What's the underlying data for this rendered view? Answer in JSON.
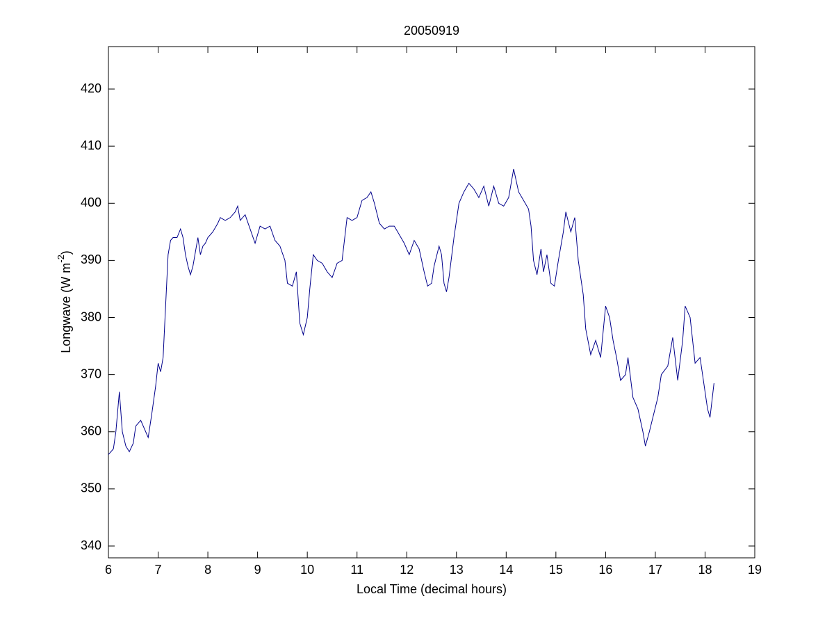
{
  "chart_data": {
    "type": "line",
    "title": "20050919",
    "xlabel": "Local Time (decimal hours)",
    "ylabel": {
      "text": "Longwave (W m",
      "superscript": "-2",
      "suffix": ")"
    },
    "color": "#00008b",
    "x": [
      6.0,
      6.1,
      6.15,
      6.22,
      6.28,
      6.35,
      6.42,
      6.5,
      6.55,
      6.65,
      6.75,
      6.8,
      6.87,
      6.95,
      7.0,
      7.05,
      7.1,
      7.15,
      7.2,
      7.25,
      7.3,
      7.38,
      7.45,
      7.5,
      7.55,
      7.6,
      7.65,
      7.7,
      7.8,
      7.85,
      7.9,
      7.95,
      8.0,
      8.1,
      8.2,
      8.25,
      8.35,
      8.45,
      8.55,
      8.6,
      8.65,
      8.75,
      8.85,
      8.95,
      9.05,
      9.15,
      9.25,
      9.35,
      9.45,
      9.55,
      9.6,
      9.7,
      9.78,
      9.85,
      9.92,
      10.0,
      10.05,
      10.12,
      10.2,
      10.3,
      10.4,
      10.5,
      10.6,
      10.7,
      10.8,
      10.9,
      11.0,
      11.1,
      11.2,
      11.28,
      11.35,
      11.45,
      11.55,
      11.65,
      11.75,
      11.85,
      11.95,
      12.05,
      12.15,
      12.25,
      12.35,
      12.42,
      12.5,
      12.55,
      12.65,
      12.7,
      12.75,
      12.8,
      12.85,
      12.95,
      13.05,
      13.15,
      13.25,
      13.35,
      13.45,
      13.55,
      13.65,
      13.75,
      13.85,
      13.95,
      14.05,
      14.15,
      14.25,
      14.35,
      14.45,
      14.5,
      14.55,
      14.62,
      14.7,
      14.75,
      14.82,
      14.9,
      14.97,
      15.05,
      15.15,
      15.2,
      15.3,
      15.38,
      15.45,
      15.55,
      15.6,
      15.7,
      15.8,
      15.9,
      16.0,
      16.08,
      16.15,
      16.22,
      16.3,
      16.4,
      16.45,
      16.55,
      16.65,
      16.75,
      16.8,
      16.88,
      16.95,
      17.05,
      17.12,
      17.25,
      17.35,
      17.45,
      17.55,
      17.6,
      17.7,
      17.8,
      17.9,
      18.0,
      18.05,
      18.1,
      18.18
    ],
    "values": [
      356,
      357,
      360,
      367,
      360,
      357.5,
      356.5,
      358,
      361,
      362,
      360,
      359,
      363,
      368,
      372,
      370.5,
      373,
      382,
      391,
      393.5,
      394,
      394,
      395.5,
      394,
      391,
      389,
      387.5,
      389,
      394,
      391,
      392.5,
      393,
      394,
      395,
      396.5,
      397.5,
      397,
      397.5,
      398.5,
      399.5,
      397,
      398,
      395.5,
      393,
      396,
      395.5,
      396,
      393.5,
      392.5,
      390,
      386,
      385.5,
      388,
      379,
      377,
      380,
      385,
      391,
      390,
      389.5,
      388,
      387,
      389.5,
      390,
      397.5,
      397,
      397.5,
      400.5,
      401,
      402,
      400,
      396.5,
      395.5,
      396,
      396,
      394.5,
      393,
      391,
      393.5,
      392,
      388,
      385.5,
      386,
      389,
      392.5,
      391,
      386,
      384.5,
      387,
      394,
      400,
      402,
      403.5,
      402.5,
      401,
      403,
      399.5,
      403,
      400,
      399.5,
      401,
      406,
      402,
      400.5,
      399,
      396,
      390,
      387.5,
      392,
      388,
      391,
      386,
      385.5,
      390,
      395,
      398.5,
      395,
      397.5,
      390,
      384,
      378,
      373.5,
      376,
      373,
      382,
      380,
      376,
      373,
      369,
      370,
      373,
      366,
      364,
      360,
      357.5,
      360,
      362.5,
      366,
      370,
      371.5,
      376.5,
      369,
      376,
      382,
      380,
      372,
      373,
      367,
      364,
      362.5,
      368.5
    ],
    "xlim": [
      6,
      19
    ],
    "xticks": [
      6,
      7,
      8,
      9,
      10,
      11,
      12,
      13,
      14,
      15,
      16,
      17,
      18,
      19
    ],
    "ylim": [
      337.93,
      427.43
    ],
    "yticks": [
      340,
      350,
      360,
      370,
      380,
      390,
      400,
      410,
      420
    ]
  }
}
